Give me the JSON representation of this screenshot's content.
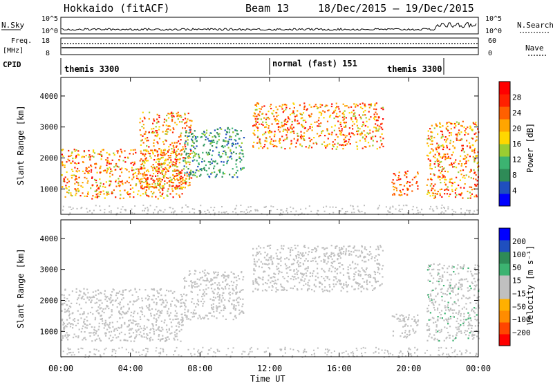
{
  "header": {
    "title": "Hokkaido (fitACF)",
    "beam": "Beam 13",
    "date_range": "18/Dec/2015 – 19/Dec/2015"
  },
  "strips": {
    "nsky_label": "N.Sky",
    "nsearch_label": "N.Search",
    "noise_ticks": [
      "10^5",
      "10^0"
    ],
    "freq_label": "Freq.",
    "freq_unit": "[MHz]",
    "freq_ticks": [
      "18",
      "8"
    ],
    "nave_label": "Nave",
    "nave_ticks": [
      "60",
      "0"
    ],
    "cpid_label": "CPID",
    "cpid_segments": [
      "themis 3300",
      "normal (fast) 151",
      "themis 3300"
    ]
  },
  "colors": {
    "power": [
      "#0000ff",
      "#1f4fbf",
      "#2e8b57",
      "#3cb371",
      "#9acd32",
      "#ffd700",
      "#ffa500",
      "#ff6000",
      "#ff2000",
      "#ff0000"
    ],
    "velocity": [
      "#ff0000",
      "#ff4500",
      "#ff8c00",
      "#ffb000",
      "#c0c0c0",
      "#c0c0c0",
      "#3cb371",
      "#2e8b57",
      "#1f4fbf",
      "#0000ff"
    ],
    "ground": "#bebebe"
  },
  "chart_data": [
    {
      "type": "heatmap",
      "title": "",
      "xlabel": "Time UT",
      "ylabel": "Slant Range [km]",
      "xlim": [
        0,
        24
      ],
      "ylim": [
        180,
        4600
      ],
      "x_tick_labels": [
        "00:00",
        "04:00",
        "08:00",
        "12:00",
        "16:00",
        "20:00",
        "00:00"
      ],
      "y_tick_labels": [
        "1000",
        "2000",
        "3000",
        "4000"
      ],
      "colorbar": {
        "label": "Power [dB]",
        "range": [
          0,
          32
        ],
        "tick_labels": [
          "4",
          "8",
          "12",
          "16",
          "20",
          "24",
          "28"
        ]
      },
      "echo_regions": [
        {
          "t": [
            0,
            7.0
          ],
          "range_km": [
            700,
            2300
          ],
          "value_db": [
            14,
            30
          ]
        },
        {
          "t": [
            4.5,
            7.5
          ],
          "range_km": [
            1000,
            3500
          ],
          "value_db": [
            14,
            30
          ]
        },
        {
          "t": [
            7.0,
            10.5
          ],
          "range_km": [
            1400,
            3000
          ],
          "value_db": [
            4,
            14
          ]
        },
        {
          "t": [
            11.0,
            18.5
          ],
          "range_km": [
            2300,
            3800
          ],
          "value_db": [
            14,
            30
          ]
        },
        {
          "t": [
            19.0,
            20.5
          ],
          "range_km": [
            800,
            1600
          ],
          "value_db": [
            20,
            30
          ]
        },
        {
          "t": [
            21.0,
            24.0
          ],
          "range_km": [
            700,
            3200
          ],
          "value_db": [
            14,
            30
          ]
        }
      ]
    },
    {
      "type": "heatmap",
      "title": "",
      "xlabel": "Time UT",
      "ylabel": "Slant Range [km]",
      "xlim": [
        0,
        24
      ],
      "ylim": [
        180,
        4600
      ],
      "x_tick_labels": [
        "00:00",
        "04:00",
        "08:00",
        "12:00",
        "16:00",
        "20:00",
        "00:00"
      ],
      "y_tick_labels": [
        "1000",
        "2000",
        "3000",
        "4000"
      ],
      "colorbar": {
        "label": "Velocity [m s⁻¹]",
        "range": [
          -250,
          250
        ],
        "tick_labels": [
          "200",
          "100",
          "50",
          "15",
          "−15",
          "−50",
          "−100",
          "−200"
        ]
      },
      "echo_regions": [
        {
          "t": [
            0,
            7.0
          ],
          "range_km": [
            700,
            2400
          ],
          "value_ms": [
            -20,
            20
          ]
        },
        {
          "t": [
            7.0,
            10.5
          ],
          "range_km": [
            1400,
            3000
          ],
          "value_ms": [
            -20,
            20
          ]
        },
        {
          "t": [
            11.0,
            18.5
          ],
          "range_km": [
            2300,
            3800
          ],
          "value_ms": [
            -20,
            20
          ]
        },
        {
          "t": [
            19.0,
            20.5
          ],
          "range_km": [
            800,
            1600
          ],
          "value_ms": [
            -20,
            20
          ]
        },
        {
          "t": [
            21.0,
            24.0
          ],
          "range_km": [
            700,
            3200
          ],
          "value_ms": [
            -20,
            60
          ]
        }
      ]
    }
  ]
}
